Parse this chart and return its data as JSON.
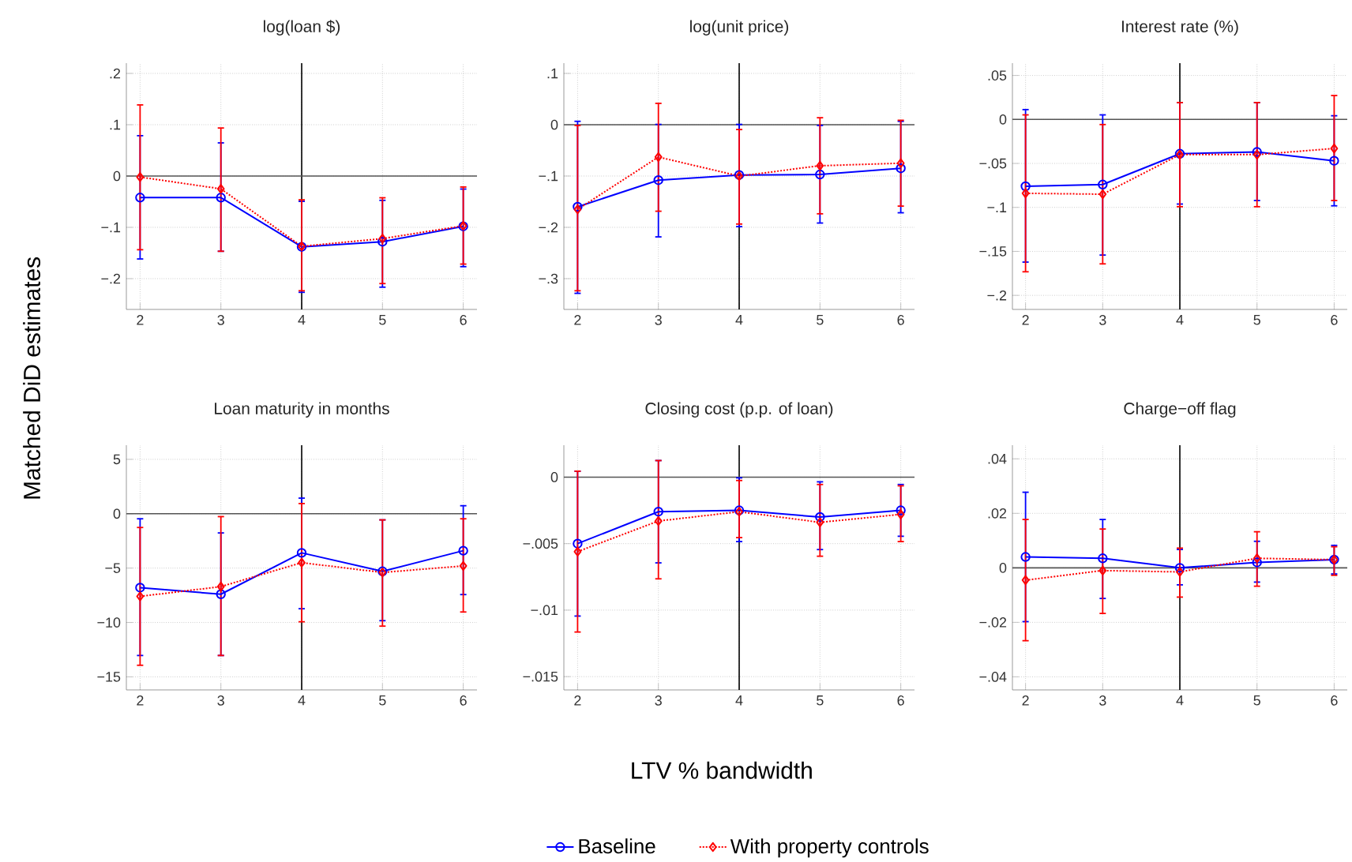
{
  "chart_data": [
    {
      "type": "line",
      "title": "log(loan $)",
      "ylabel": "Matched DiD estimates",
      "x": [
        2,
        3,
        4,
        5,
        6
      ],
      "xlim": [
        1.83,
        6.17
      ],
      "xticks": [
        2,
        3,
        4,
        5,
        6
      ],
      "ylim": [
        -0.26,
        0.22
      ],
      "yticks": [
        {
          "value": 0.2,
          "label": ".2"
        },
        {
          "value": 0.1,
          "label": ".1"
        },
        0,
        {
          "value": -0.1,
          "label": "−.1"
        },
        {
          "value": -0.2,
          "label": "−.2"
        }
      ],
      "grid": true,
      "ref_lines": [
        {
          "axis": "x",
          "value": 4,
          "color": "#000000"
        },
        {
          "axis": "y",
          "value": 0,
          "color": "#555555"
        }
      ],
      "series": [
        {
          "color": "#0000ff",
          "marker": "circle",
          "line_style": "solid",
          "values": [
            -0.042,
            -0.042,
            -0.138,
            -0.128,
            -0.098
          ],
          "errors": [
            [
              -0.163,
              0.08
            ],
            [
              -0.148,
              0.066
            ],
            [
              -0.228,
              -0.048
            ],
            [
              -0.218,
              -0.046
            ],
            [
              -0.178,
              -0.024
            ]
          ]
        },
        {
          "color": "#ff0000",
          "marker": "diamond",
          "line_style": "dotted",
          "values": [
            -0.002,
            -0.025,
            -0.137,
            -0.122,
            -0.097
          ],
          "errors": [
            [
              -0.145,
              0.14
            ],
            [
              -0.148,
              0.095
            ],
            [
              -0.225,
              -0.045
            ],
            [
              -0.211,
              -0.041
            ],
            [
              -0.173,
              -0.02
            ]
          ]
        }
      ]
    },
    {
      "type": "line",
      "title": "log(unit price)",
      "x": [
        2,
        3,
        4,
        5,
        6
      ],
      "xlim": [
        1.83,
        6.17
      ],
      "xticks": [
        2,
        3,
        4,
        5,
        6
      ],
      "ylim": [
        -0.36,
        0.12
      ],
      "yticks": [
        {
          "value": 0.1,
          "label": ".1"
        },
        0,
        {
          "value": -0.1,
          "label": "−.1"
        },
        {
          "value": -0.2,
          "label": "−.2"
        },
        {
          "value": -0.3,
          "label": "−.3"
        }
      ],
      "grid": true,
      "ref_lines": [
        {
          "axis": "x",
          "value": 4,
          "color": "#000000"
        },
        {
          "axis": "y",
          "value": 0,
          "color": "#555555"
        }
      ],
      "series": [
        {
          "color": "#0000ff",
          "marker": "circle",
          "line_style": "solid",
          "values": [
            -0.16,
            -0.108,
            -0.098,
            -0.097,
            -0.085
          ],
          "errors": [
            [
              -0.33,
              0.008
            ],
            [
              -0.22,
              0.002
            ],
            [
              -0.2,
              0.002
            ],
            [
              -0.193,
              0
            ],
            [
              -0.173,
              0.008
            ]
          ]
        },
        {
          "color": "#ff0000",
          "marker": "diamond",
          "line_style": "dotted",
          "values": [
            -0.165,
            -0.063,
            -0.1,
            -0.08,
            -0.075
          ],
          "errors": [
            [
              -0.325,
              0
            ],
            [
              -0.17,
              0.043
            ],
            [
              -0.195,
              -0.008
            ],
            [
              -0.175,
              0.015
            ],
            [
              -0.16,
              0.01
            ]
          ]
        }
      ]
    },
    {
      "type": "line",
      "title": "Interest rate (%)",
      "x": [
        2,
        3,
        4,
        5,
        6
      ],
      "xlim": [
        1.83,
        6.17
      ],
      "xticks": [
        2,
        3,
        4,
        5,
        6
      ],
      "ylim": [
        -0.216,
        0.064
      ],
      "yticks": [
        {
          "value": 0.05,
          "label": ".05"
        },
        0,
        {
          "value": -0.05,
          "label": "−.05"
        },
        {
          "value": -0.1,
          "label": "−.1"
        },
        {
          "value": -0.15,
          "label": "−.15"
        },
        {
          "value": -0.2,
          "label": "−.2"
        }
      ],
      "grid": true,
      "ref_lines": [
        {
          "axis": "x",
          "value": 4,
          "color": "#000000"
        },
        {
          "axis": "y",
          "value": 0,
          "color": "#555555"
        }
      ],
      "series": [
        {
          "color": "#0000ff",
          "marker": "circle",
          "line_style": "solid",
          "values": [
            -0.076,
            -0.074,
            -0.039,
            -0.037,
            -0.047
          ],
          "errors": [
            [
              -0.163,
              0.012
            ],
            [
              -0.155,
              0.006
            ],
            [
              -0.097,
              0.02
            ],
            [
              -0.093,
              0.02
            ],
            [
              -0.099,
              0.005
            ]
          ]
        },
        {
          "color": "#ff0000",
          "marker": "diamond",
          "line_style": "dotted",
          "values": [
            -0.084,
            -0.085,
            -0.04,
            -0.04,
            -0.033
          ],
          "errors": [
            [
              -0.174,
              0.006
            ],
            [
              -0.165,
              -0.005
            ],
            [
              -0.1,
              0.02
            ],
            [
              -0.1,
              0.02
            ],
            [
              -0.093,
              0.028
            ]
          ]
        }
      ]
    },
    {
      "type": "line",
      "title": "Loan maturity in months",
      "x": [
        2,
        3,
        4,
        5,
        6
      ],
      "xlim": [
        1.83,
        6.17
      ],
      "xticks": [
        2,
        3,
        4,
        5,
        6
      ],
      "ylim": [
        -16.2,
        6.3
      ],
      "yticks": [
        5,
        0,
        {
          "value": -5,
          "label": "−5"
        },
        {
          "value": -10,
          "label": "−10"
        },
        {
          "value": -15,
          "label": "−15"
        }
      ],
      "grid": true,
      "ref_lines": [
        {
          "axis": "x",
          "value": 4,
          "color": "#000000"
        },
        {
          "axis": "y",
          "value": 0,
          "color": "#555555"
        }
      ],
      "series": [
        {
          "color": "#0000ff",
          "marker": "circle",
          "line_style": "solid",
          "values": [
            -6.8,
            -7.4,
            -3.6,
            -5.3,
            -3.4
          ],
          "errors": [
            [
              -13.1,
              -0.4
            ],
            [
              -13.1,
              -1.7
            ],
            [
              -8.8,
              1.5
            ],
            [
              -9.9,
              -0.5
            ],
            [
              -7.5,
              0.8
            ]
          ]
        },
        {
          "color": "#ff0000",
          "marker": "diamond",
          "line_style": "dotted",
          "values": [
            -7.6,
            -6.7,
            -4.5,
            -5.4,
            -4.8
          ],
          "errors": [
            [
              -14,
              -1.2
            ],
            [
              -13.1,
              -0.2
            ],
            [
              -10,
              1
            ],
            [
              -10.4,
              -0.5
            ],
            [
              -9.1,
              -0.4
            ]
          ]
        }
      ]
    },
    {
      "type": "line",
      "title": "Closing cost (p.p. of loan)",
      "xlabel": "LTV % bandwidth",
      "legend": "bottom",
      "x": [
        2,
        3,
        4,
        5,
        6
      ],
      "xlim": [
        1.83,
        6.17
      ],
      "xticks": [
        2,
        3,
        4,
        5,
        6
      ],
      "ylim": [
        -0.016,
        0.0024
      ],
      "yticks": [
        0,
        {
          "value": -0.005,
          "label": "−.005"
        },
        {
          "value": -0.01,
          "label": "−.01"
        },
        {
          "value": -0.015,
          "label": "−.015"
        }
      ],
      "grid": true,
      "ref_lines": [
        {
          "axis": "x",
          "value": 4,
          "color": "#000000"
        },
        {
          "axis": "y",
          "value": 0,
          "color": "#555555"
        }
      ],
      "series": [
        {
          "name": "Baseline",
          "color": "#0000ff",
          "marker": "circle",
          "line_style": "solid",
          "values": [
            -0.005,
            -0.0026,
            -0.0025,
            -0.003,
            -0.0025
          ],
          "errors": [
            [
              -0.0105,
              0.0005
            ],
            [
              -0.0065,
              0.0013
            ],
            [
              -0.0049,
              0
            ],
            [
              -0.0055,
              -0.0003
            ],
            [
              -0.0045,
              -0.0005
            ]
          ]
        },
        {
          "name": "With property controls",
          "color": "#ff0000",
          "marker": "diamond",
          "line_style": "dotted",
          "values": [
            -0.0056,
            -0.0033,
            -0.0026,
            -0.0034,
            -0.0028
          ],
          "errors": [
            [
              -0.0117,
              0.0005
            ],
            [
              -0.0077,
              0.0013
            ],
            [
              -0.0046,
              -0.0002
            ],
            [
              -0.006,
              -0.0005
            ],
            [
              -0.0049,
              -0.0006
            ]
          ]
        }
      ]
    },
    {
      "type": "line",
      "title": "Charge−off flag",
      "x": [
        2,
        3,
        4,
        5,
        6
      ],
      "xlim": [
        1.83,
        6.17
      ],
      "xticks": [
        2,
        3,
        4,
        5,
        6
      ],
      "ylim": [
        -0.0448,
        0.045
      ],
      "yticks": [
        {
          "value": 0.04,
          "label": ".04"
        },
        {
          "value": 0.02,
          "label": ".02"
        },
        0,
        {
          "value": -0.02,
          "label": "−.02"
        },
        {
          "value": -0.04,
          "label": "−.04"
        }
      ],
      "grid": true,
      "ref_lines": [
        {
          "axis": "x",
          "value": 4,
          "color": "#000000"
        },
        {
          "axis": "y",
          "value": 0,
          "color": "#555555"
        }
      ],
      "series": [
        {
          "color": "#0000ff",
          "marker": "circle",
          "line_style": "solid",
          "values": [
            0.004,
            0.0035,
            0,
            0.002,
            0.003
          ],
          "errors": [
            [
              -0.02,
              0.028
            ],
            [
              -0.0115,
              0.018
            ],
            [
              -0.0065,
              0.007
            ],
            [
              -0.0055,
              0.01
            ],
            [
              -0.0025,
              0.0085
            ]
          ]
        },
        {
          "color": "#ff0000",
          "marker": "diamond",
          "line_style": "dotted",
          "values": [
            -0.0045,
            -0.001,
            -0.0015,
            0.0035,
            0.003
          ],
          "errors": [
            [
              -0.027,
              0.018
            ],
            [
              -0.017,
              0.0145
            ],
            [
              -0.011,
              0.0075
            ],
            [
              -0.007,
              0.0135
            ],
            [
              -0.003,
              0.008
            ]
          ]
        }
      ]
    }
  ]
}
